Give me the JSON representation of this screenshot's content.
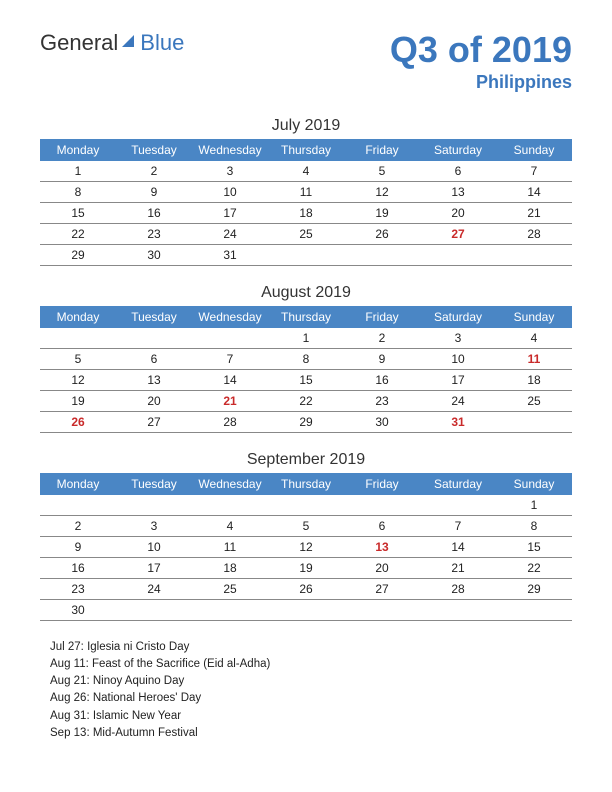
{
  "logo": {
    "text_a": "General",
    "text_b": "Blue"
  },
  "title": {
    "main": "Q3 of 2019",
    "sub": "Philippines"
  },
  "colors": {
    "brand": "#3b77bd",
    "header_bg": "#4a86c5",
    "header_text": "#ffffff",
    "holiday": "#c92a2a",
    "row_border": "#888888",
    "text": "#222222",
    "background": "#ffffff"
  },
  "day_headers": [
    "Monday",
    "Tuesday",
    "Wednesday",
    "Thursday",
    "Friday",
    "Saturday",
    "Sunday"
  ],
  "months": [
    {
      "title": "July 2019",
      "rows": [
        [
          {
            "d": "1"
          },
          {
            "d": "2"
          },
          {
            "d": "3"
          },
          {
            "d": "4"
          },
          {
            "d": "5"
          },
          {
            "d": "6"
          },
          {
            "d": "7"
          }
        ],
        [
          {
            "d": "8"
          },
          {
            "d": "9"
          },
          {
            "d": "10"
          },
          {
            "d": "11"
          },
          {
            "d": "12"
          },
          {
            "d": "13"
          },
          {
            "d": "14"
          }
        ],
        [
          {
            "d": "15"
          },
          {
            "d": "16"
          },
          {
            "d": "17"
          },
          {
            "d": "18"
          },
          {
            "d": "19"
          },
          {
            "d": "20"
          },
          {
            "d": "21"
          }
        ],
        [
          {
            "d": "22"
          },
          {
            "d": "23"
          },
          {
            "d": "24"
          },
          {
            "d": "25"
          },
          {
            "d": "26"
          },
          {
            "d": "27",
            "h": true
          },
          {
            "d": "28"
          }
        ],
        [
          {
            "d": "29"
          },
          {
            "d": "30"
          },
          {
            "d": "31"
          },
          {
            "d": ""
          },
          {
            "d": ""
          },
          {
            "d": ""
          },
          {
            "d": ""
          }
        ]
      ]
    },
    {
      "title": "August 2019",
      "rows": [
        [
          {
            "d": ""
          },
          {
            "d": ""
          },
          {
            "d": ""
          },
          {
            "d": "1"
          },
          {
            "d": "2"
          },
          {
            "d": "3"
          },
          {
            "d": "4"
          }
        ],
        [
          {
            "d": "5"
          },
          {
            "d": "6"
          },
          {
            "d": "7"
          },
          {
            "d": "8"
          },
          {
            "d": "9"
          },
          {
            "d": "10"
          },
          {
            "d": "11",
            "h": true
          }
        ],
        [
          {
            "d": "12"
          },
          {
            "d": "13"
          },
          {
            "d": "14"
          },
          {
            "d": "15"
          },
          {
            "d": "16"
          },
          {
            "d": "17"
          },
          {
            "d": "18"
          }
        ],
        [
          {
            "d": "19"
          },
          {
            "d": "20"
          },
          {
            "d": "21",
            "h": true
          },
          {
            "d": "22"
          },
          {
            "d": "23"
          },
          {
            "d": "24"
          },
          {
            "d": "25"
          }
        ],
        [
          {
            "d": "26",
            "h": true
          },
          {
            "d": "27"
          },
          {
            "d": "28"
          },
          {
            "d": "29"
          },
          {
            "d": "30"
          },
          {
            "d": "31",
            "h": true
          },
          {
            "d": ""
          }
        ]
      ]
    },
    {
      "title": "September 2019",
      "rows": [
        [
          {
            "d": ""
          },
          {
            "d": ""
          },
          {
            "d": ""
          },
          {
            "d": ""
          },
          {
            "d": ""
          },
          {
            "d": ""
          },
          {
            "d": "1"
          }
        ],
        [
          {
            "d": "2"
          },
          {
            "d": "3"
          },
          {
            "d": "4"
          },
          {
            "d": "5"
          },
          {
            "d": "6"
          },
          {
            "d": "7"
          },
          {
            "d": "8"
          }
        ],
        [
          {
            "d": "9"
          },
          {
            "d": "10"
          },
          {
            "d": "11"
          },
          {
            "d": "12"
          },
          {
            "d": "13",
            "h": true
          },
          {
            "d": "14"
          },
          {
            "d": "15"
          }
        ],
        [
          {
            "d": "16"
          },
          {
            "d": "17"
          },
          {
            "d": "18"
          },
          {
            "d": "19"
          },
          {
            "d": "20"
          },
          {
            "d": "21"
          },
          {
            "d": "22"
          }
        ],
        [
          {
            "d": "23"
          },
          {
            "d": "24"
          },
          {
            "d": "25"
          },
          {
            "d": "26"
          },
          {
            "d": "27"
          },
          {
            "d": "28"
          },
          {
            "d": "29"
          }
        ],
        [
          {
            "d": "30"
          },
          {
            "d": ""
          },
          {
            "d": ""
          },
          {
            "d": ""
          },
          {
            "d": ""
          },
          {
            "d": ""
          },
          {
            "d": ""
          }
        ]
      ]
    }
  ],
  "holidays": [
    "Jul 27: Iglesia ni Cristo Day",
    "Aug 11: Feast of the Sacrifice (Eid al-Adha)",
    "Aug 21: Ninoy Aquino Day",
    "Aug 26: National Heroes' Day",
    "Aug 31: Islamic New Year",
    "Sep 13: Mid-Autumn Festival"
  ]
}
